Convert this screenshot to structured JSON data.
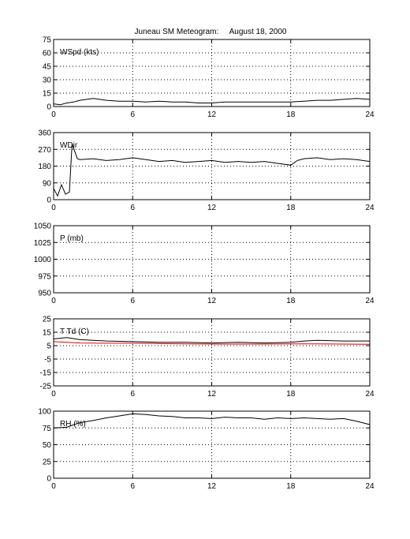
{
  "figure": {
    "title": "Juneau SM Meteogram:     August 18, 2000"
  },
  "chart_data": [
    {
      "type": "line",
      "panel_label": "WSpd (kts)",
      "x_range": [
        0,
        24
      ],
      "x_ticks": [
        0,
        6,
        12,
        18,
        24
      ],
      "ylim": [
        0,
        75
      ],
      "y_ticks": [
        0,
        15,
        30,
        45,
        60,
        75
      ],
      "grid": true,
      "series": [
        {
          "color": "#000000",
          "x": [
            0,
            0.5,
            1,
            1.5,
            2,
            2.5,
            3,
            3.5,
            4,
            5,
            6,
            7,
            8,
            9,
            10,
            11,
            12,
            13,
            14,
            15,
            16,
            17,
            18,
            19,
            20,
            21,
            22,
            23,
            24
          ],
          "values": [
            3,
            2,
            4,
            5,
            7,
            8,
            9,
            8,
            7,
            6,
            6,
            5,
            6,
            5,
            5,
            4,
            4,
            5,
            5,
            5,
            5,
            5,
            5,
            6,
            7,
            7,
            8,
            9,
            8
          ]
        }
      ]
    },
    {
      "type": "line",
      "panel_label": "WDir",
      "x_range": [
        0,
        24
      ],
      "x_ticks": [
        0,
        6,
        12,
        18,
        24
      ],
      "ylim": [
        0,
        360
      ],
      "y_ticks": [
        0,
        90,
        180,
        270,
        360
      ],
      "grid": true,
      "series": [
        {
          "color": "#000000",
          "x": [
            0,
            0.3,
            0.6,
            0.9,
            1.2,
            1.4,
            1.6,
            1.8,
            2,
            3,
            4,
            5,
            6,
            7,
            8,
            9,
            10,
            11,
            12,
            13,
            14,
            15,
            16,
            17,
            18,
            18.5,
            19,
            20,
            21,
            22,
            23,
            24
          ],
          "values": [
            60,
            20,
            80,
            30,
            40,
            300,
            260,
            220,
            215,
            220,
            210,
            215,
            225,
            215,
            205,
            210,
            200,
            205,
            210,
            200,
            205,
            200,
            205,
            195,
            185,
            210,
            220,
            225,
            215,
            220,
            215,
            205
          ]
        }
      ]
    },
    {
      "type": "line",
      "panel_label": "P (mb)",
      "x_range": [
        0,
        24
      ],
      "x_ticks": [
        0,
        6,
        12,
        18,
        24
      ],
      "ylim": [
        950,
        1050
      ],
      "y_ticks": [
        950,
        975,
        1000,
        1025,
        1050
      ],
      "grid": true,
      "series": []
    },
    {
      "type": "line",
      "panel_label": "T Td (C)",
      "x_range": [
        0,
        24
      ],
      "x_ticks": [
        0,
        6,
        12,
        18,
        24
      ],
      "ylim": [
        -25,
        25
      ],
      "y_ticks": [
        -25,
        -15,
        -5,
        5,
        15,
        25
      ],
      "grid": true,
      "series": [
        {
          "color": "#000000",
          "x": [
            0,
            1,
            2,
            3,
            4,
            6,
            8,
            10,
            12,
            14,
            16,
            18,
            19,
            20,
            22,
            24
          ],
          "values": [
            10,
            11,
            9.5,
            9,
            8.5,
            8,
            7.5,
            7.5,
            7,
            7.5,
            7,
            7.5,
            8.5,
            9,
            8.5,
            8.5
          ]
        },
        {
          "color": "#e00000",
          "x": [
            0,
            2,
            4,
            6,
            8,
            10,
            12,
            14,
            16,
            18,
            20,
            22,
            24
          ],
          "values": [
            8,
            7,
            6.8,
            6.8,
            6.5,
            6.3,
            6.2,
            6.2,
            6.2,
            6.3,
            6.3,
            6.2,
            6
          ]
        }
      ]
    },
    {
      "type": "line",
      "panel_label": "RH (%)",
      "x_range": [
        0,
        24
      ],
      "x_ticks": [
        0,
        6,
        12,
        18,
        24
      ],
      "ylim": [
        0,
        100
      ],
      "y_ticks": [
        0,
        25,
        50,
        75,
        100
      ],
      "grid": true,
      "series": [
        {
          "color": "#000000",
          "x": [
            0,
            1,
            2,
            3,
            4,
            5,
            6,
            7,
            8,
            9,
            10,
            11,
            12,
            13,
            14,
            15,
            16,
            17,
            18,
            19,
            20,
            21,
            22,
            23,
            24
          ],
          "values": [
            75,
            76,
            83,
            86,
            90,
            93,
            96,
            95,
            93,
            92,
            90,
            90,
            89,
            91,
            90,
            90,
            88,
            90,
            89,
            90,
            89,
            88,
            89,
            85,
            80
          ]
        }
      ]
    }
  ]
}
